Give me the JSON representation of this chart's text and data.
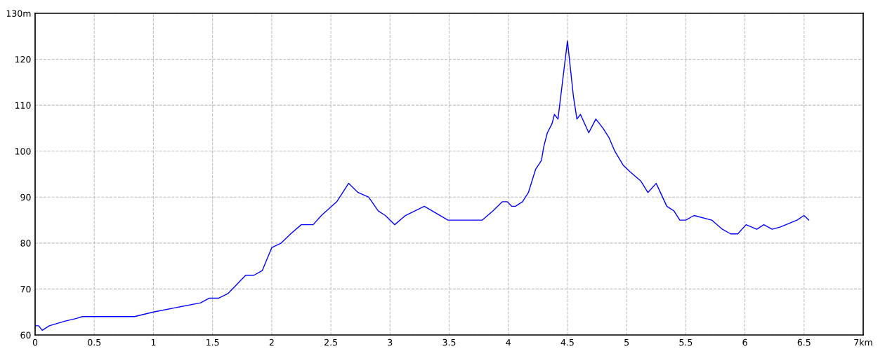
{
  "chart_data": {
    "type": "line",
    "series": [
      {
        "color": "#0000ff",
        "x": [
          0,
          0.03,
          0.06,
          0.12,
          0.2,
          0.25,
          0.35,
          0.4,
          0.84,
          1.0,
          1.2,
          1.4,
          1.47,
          1.55,
          1.63,
          1.78,
          1.85,
          1.92,
          2.0,
          2.08,
          2.16,
          2.25,
          2.35,
          2.42,
          2.55,
          2.65,
          2.73,
          2.82,
          2.9,
          2.96,
          3.04,
          3.13,
          3.29,
          3.49,
          3.78,
          3.87,
          3.95,
          3.99,
          4.03,
          4.06,
          4.12,
          4.17,
          4.23,
          4.28,
          4.3,
          4.33,
          4.37,
          4.39,
          4.42,
          4.5,
          4.55,
          4.58,
          4.61,
          4.68,
          4.7,
          4.74,
          4.8,
          4.85,
          4.9,
          4.97,
          5.03,
          5.12,
          5.18,
          5.25,
          5.34,
          5.4,
          5.45,
          5.5,
          5.57,
          5.72,
          5.81,
          5.88,
          5.94,
          6.01,
          6.1,
          6.16,
          6.23,
          6.3,
          6.44,
          6.5,
          6.54
        ],
        "values": [
          62,
          62,
          61,
          62,
          62.6,
          63,
          63.6,
          64,
          64,
          65,
          66,
          67,
          68,
          68,
          69,
          73,
          73,
          74,
          79,
          80,
          82,
          84,
          84,
          86,
          89,
          93,
          91,
          90,
          87,
          86,
          84,
          86,
          88,
          85,
          85,
          87,
          89,
          89,
          88,
          88,
          89,
          91,
          96,
          98,
          101,
          104,
          106,
          108,
          107,
          124,
          112,
          107,
          108,
          104,
          105,
          107,
          105,
          103,
          100,
          97,
          95.5,
          93.5,
          91,
          93,
          88,
          87,
          85,
          85,
          86,
          85,
          83,
          82,
          82,
          84,
          83,
          84,
          83,
          83.5,
          85,
          86,
          85
        ]
      }
    ],
    "xlim": [
      0,
      7
    ],
    "ylim": [
      60,
      130
    ],
    "xticks": [
      0,
      0.5,
      1,
      1.5,
      2,
      2.5,
      3,
      3.5,
      4,
      4.5,
      5,
      5.5,
      6,
      6.5,
      {
        "value": 7,
        "label": "7km"
      }
    ],
    "yticks": [
      60,
      70,
      80,
      90,
      100,
      110,
      120,
      {
        "value": 130,
        "label": "130m"
      }
    ],
    "grid": true,
    "line_style": "solid",
    "marker": "none"
  }
}
